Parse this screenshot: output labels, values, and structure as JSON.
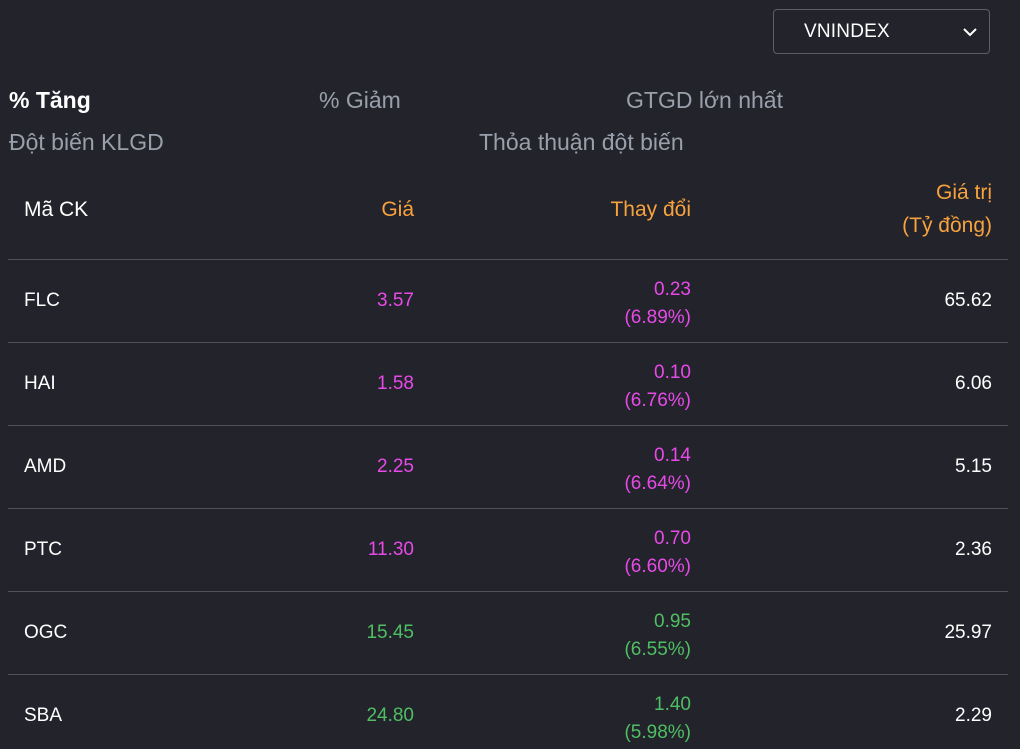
{
  "index_select": {
    "value": "VNINDEX",
    "icon": "chevron-down-icon"
  },
  "tabs": [
    {
      "label": "% Tăng",
      "active": true
    },
    {
      "label": "% Giảm",
      "active": false
    },
    {
      "label": "GTGD lớn nhất",
      "active": false
    },
    {
      "label": "Đột biến KLGD",
      "active": false
    },
    {
      "label": "Thỏa thuận đột biến",
      "active": false
    }
  ],
  "table": {
    "headers": {
      "symbol": "Mã CK",
      "price": "Giá",
      "change": "Thay đổi",
      "value_line1": "Giá trị",
      "value_line2": "(Tỷ đồng)"
    },
    "rows": [
      {
        "symbol": "FLC",
        "price": "3.57",
        "change": "0.23",
        "change_pct": "(6.89%)",
        "value": "65.62",
        "color": "purple"
      },
      {
        "symbol": "HAI",
        "price": "1.58",
        "change": "0.10",
        "change_pct": "(6.76%)",
        "value": "6.06",
        "color": "purple"
      },
      {
        "symbol": "AMD",
        "price": "2.25",
        "change": "0.14",
        "change_pct": "(6.64%)",
        "value": "5.15",
        "color": "purple"
      },
      {
        "symbol": "PTC",
        "price": "11.30",
        "change": "0.70",
        "change_pct": "(6.60%)",
        "value": "2.36",
        "color": "purple"
      },
      {
        "symbol": "OGC",
        "price": "15.45",
        "change": "0.95",
        "change_pct": "(6.55%)",
        "value": "25.97",
        "color": "green"
      },
      {
        "symbol": "SBA",
        "price": "24.80",
        "change": "1.40",
        "change_pct": "(5.98%)",
        "value": "2.29",
        "color": "green"
      }
    ]
  },
  "colors": {
    "background": "#22232b",
    "header_accent": "#f7a23e",
    "ceiling_purple": "#e84ae8",
    "up_green": "#4fbf63",
    "inactive_tab": "#9aa0ab",
    "divider": "#4f525c"
  }
}
